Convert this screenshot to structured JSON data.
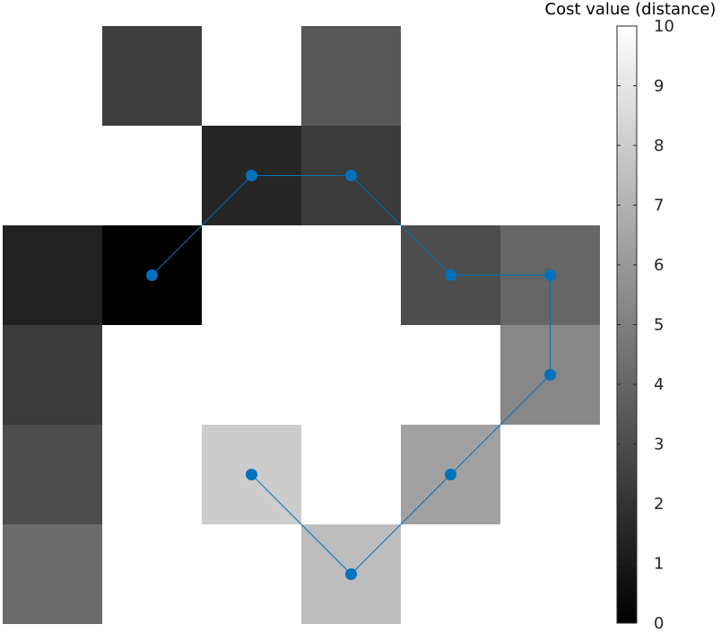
{
  "chart_data": {
    "type": "heatmap",
    "grid": {
      "rows": 6,
      "cols": 6
    },
    "cells": [
      {
        "row": 0,
        "col": 1,
        "value": 2.4
      },
      {
        "row": 0,
        "col": 3,
        "value": 3.4
      },
      {
        "row": 1,
        "col": 2,
        "value": 1.5
      },
      {
        "row": 1,
        "col": 3,
        "value": 2.3
      },
      {
        "row": 2,
        "col": 0,
        "value": 1.3
      },
      {
        "row": 2,
        "col": 1,
        "value": 0.0
      },
      {
        "row": 2,
        "col": 4,
        "value": 3.0
      },
      {
        "row": 2,
        "col": 5,
        "value": 4.0
      },
      {
        "row": 3,
        "col": 0,
        "value": 2.3
      },
      {
        "row": 3,
        "col": 5,
        "value": 5.3
      },
      {
        "row": 4,
        "col": 0,
        "value": 3.0
      },
      {
        "row": 4,
        "col": 2,
        "value": 8.0
      },
      {
        "row": 4,
        "col": 4,
        "value": 6.3
      },
      {
        "row": 5,
        "col": 0,
        "value": 4.2
      },
      {
        "row": 5,
        "col": 3,
        "value": 7.4
      }
    ],
    "path": [
      {
        "row": 2,
        "col": 1
      },
      {
        "row": 1,
        "col": 2
      },
      {
        "row": 1,
        "col": 3
      },
      {
        "row": 2,
        "col": 4
      },
      {
        "row": 2,
        "col": 5
      },
      {
        "row": 3,
        "col": 5
      },
      {
        "row": 4,
        "col": 4
      },
      {
        "row": 5,
        "col": 3
      },
      {
        "row": 4,
        "col": 2
      }
    ],
    "colormap": "gray",
    "clim": [
      0,
      10
    ],
    "colorbar": {
      "title": "Cost value (distance)",
      "ticks": [
        "0",
        "1",
        "2",
        "3",
        "4",
        "5",
        "6",
        "7",
        "8",
        "9",
        "10"
      ]
    },
    "path_color": "#0072BD",
    "grid_lines": false,
    "axes_visible": false
  }
}
